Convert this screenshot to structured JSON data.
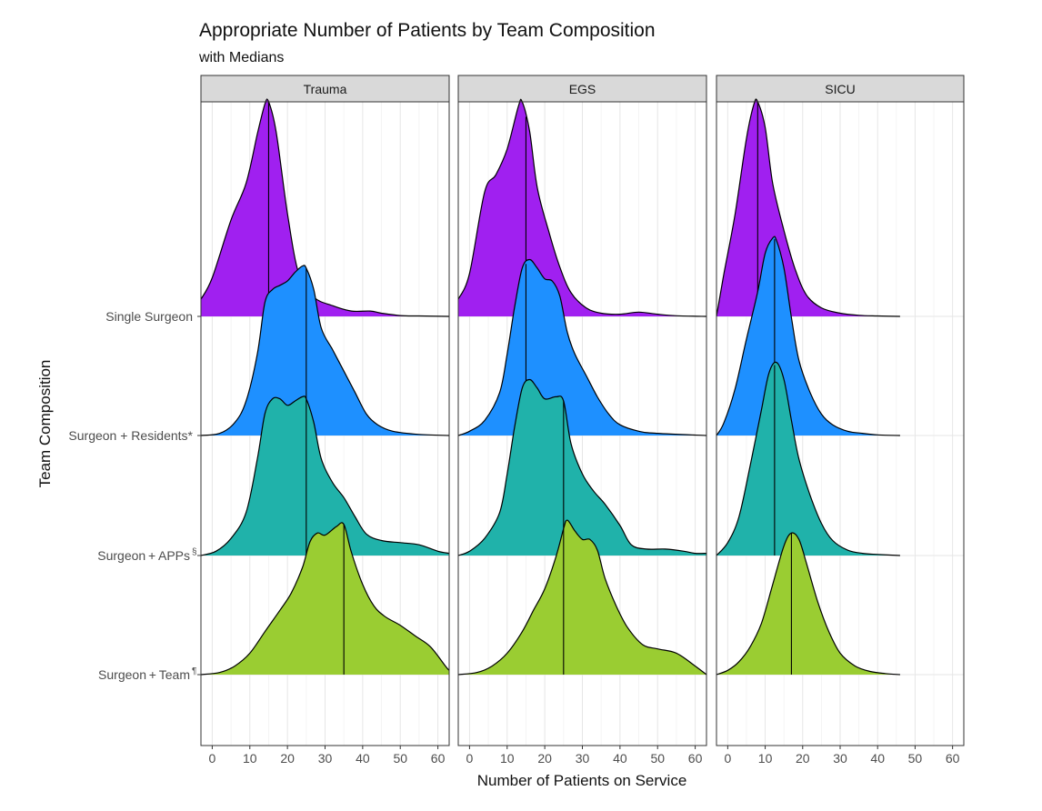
{
  "chart_data": {
    "type": "ridgeline",
    "title": "Appropriate Number of Patients by Team Composition",
    "subtitle": "with Medians",
    "xlabel": "Number of Patients on Service",
    "ylabel": "Team Composition",
    "xlim": [
      -3,
      63
    ],
    "x_ticks": [
      0,
      10,
      20,
      30,
      40,
      50,
      60
    ],
    "grid": true,
    "facets": [
      "Trauma",
      "EGS",
      "SICU"
    ],
    "groups": [
      {
        "name": "Single Surgeon",
        "label": "Single Surgeon",
        "sup": "",
        "color": "#a020f0"
      },
      {
        "name": "Surgeon + Residents*",
        "label": "Surgeon + Residents*",
        "sup": "",
        "color": "#1e90ff"
      },
      {
        "name": "Surgeon + APPs§",
        "label": "Surgeon + APPs",
        "sup": "§",
        "color": "#20b2aa"
      },
      {
        "name": "Surgeon + Team¶",
        "label": "Surgeon + Team",
        "sup": "¶",
        "color": "#9acd32"
      }
    ],
    "densities": {
      "Trauma": [
        {
          "group": "Single Surgeon",
          "median": 15,
          "xrange": [
            -3,
            63
          ],
          "points": [
            [
              -3,
              0.08
            ],
            [
              0,
              0.18
            ],
            [
              5,
              0.45
            ],
            [
              9,
              0.62
            ],
            [
              12,
              0.85
            ],
            [
              14,
              0.99
            ],
            [
              15,
              1.0
            ],
            [
              17,
              0.86
            ],
            [
              20,
              0.48
            ],
            [
              23,
              0.2
            ],
            [
              27,
              0.09
            ],
            [
              32,
              0.05
            ],
            [
              37,
              0.025
            ],
            [
              42,
              0.025
            ],
            [
              45,
              0.015
            ],
            [
              50,
              0.004
            ],
            [
              55,
              0.002
            ],
            [
              63,
              0.0
            ]
          ]
        },
        {
          "group": "Surgeon + Residents*",
          "median": 25,
          "xrange": [
            -3,
            63
          ],
          "points": [
            [
              -3,
              0.0
            ],
            [
              2,
              0.01
            ],
            [
              6,
              0.06
            ],
            [
              9,
              0.16
            ],
            [
              12,
              0.38
            ],
            [
              14,
              0.62
            ],
            [
              16,
              0.68
            ],
            [
              18,
              0.7
            ],
            [
              20,
              0.72
            ],
            [
              22,
              0.76
            ],
            [
              24,
              0.79
            ],
            [
              25,
              0.78
            ],
            [
              27,
              0.68
            ],
            [
              29,
              0.5
            ],
            [
              32,
              0.4
            ],
            [
              35,
              0.3
            ],
            [
              38,
              0.2
            ],
            [
              41,
              0.1
            ],
            [
              44,
              0.05
            ],
            [
              48,
              0.02
            ],
            [
              55,
              0.005
            ],
            [
              63,
              0.0
            ]
          ]
        },
        {
          "group": "Surgeon + APPs§",
          "median": 25,
          "xrange": [
            -3,
            63
          ],
          "points": [
            [
              -3,
              0.0
            ],
            [
              1,
              0.02
            ],
            [
              5,
              0.08
            ],
            [
              9,
              0.2
            ],
            [
              12,
              0.45
            ],
            [
              14,
              0.66
            ],
            [
              16,
              0.73
            ],
            [
              18,
              0.73
            ],
            [
              20,
              0.7
            ],
            [
              22,
              0.72
            ],
            [
              24,
              0.74
            ],
            [
              25,
              0.73
            ],
            [
              27,
              0.62
            ],
            [
              29,
              0.45
            ],
            [
              32,
              0.34
            ],
            [
              35,
              0.27
            ],
            [
              38,
              0.18
            ],
            [
              41,
              0.1
            ],
            [
              45,
              0.07
            ],
            [
              50,
              0.06
            ],
            [
              55,
              0.05
            ],
            [
              60,
              0.02
            ],
            [
              63,
              0.01
            ]
          ]
        },
        {
          "group": "Surgeon + Team¶",
          "median": 35,
          "xrange": [
            -3,
            63
          ],
          "points": [
            [
              -3,
              0.0
            ],
            [
              2,
              0.01
            ],
            [
              6,
              0.04
            ],
            [
              10,
              0.1
            ],
            [
              14,
              0.2
            ],
            [
              18,
              0.3
            ],
            [
              21,
              0.38
            ],
            [
              24,
              0.5
            ],
            [
              26,
              0.62
            ],
            [
              28,
              0.66
            ],
            [
              30,
              0.65
            ],
            [
              33,
              0.69
            ],
            [
              35,
              0.7
            ],
            [
              37,
              0.57
            ],
            [
              40,
              0.42
            ],
            [
              43,
              0.32
            ],
            [
              46,
              0.27
            ],
            [
              50,
              0.23
            ],
            [
              54,
              0.18
            ],
            [
              58,
              0.13
            ],
            [
              62,
              0.04
            ],
            [
              63,
              0.02
            ]
          ]
        }
      ],
      "EGS": [
        {
          "group": "Single Surgeon",
          "median": 15,
          "xrange": [
            -3,
            63
          ],
          "points": [
            [
              -3,
              0.08
            ],
            [
              0,
              0.2
            ],
            [
              4,
              0.58
            ],
            [
              7,
              0.66
            ],
            [
              10,
              0.78
            ],
            [
              13,
              0.98
            ],
            [
              14,
              1.0
            ],
            [
              16,
              0.86
            ],
            [
              18,
              0.6
            ],
            [
              21,
              0.4
            ],
            [
              24,
              0.23
            ],
            [
              27,
              0.11
            ],
            [
              31,
              0.04
            ],
            [
              35,
              0.015
            ],
            [
              40,
              0.01
            ],
            [
              45,
              0.02
            ],
            [
              50,
              0.01
            ],
            [
              55,
              0.003
            ],
            [
              63,
              0.0
            ]
          ]
        },
        {
          "group": "Surgeon + Residents*",
          "median": 15,
          "xrange": [
            -3,
            63
          ],
          "points": [
            [
              -3,
              0.0
            ],
            [
              0,
              0.02
            ],
            [
              4,
              0.07
            ],
            [
              8,
              0.2
            ],
            [
              10,
              0.38
            ],
            [
              12,
              0.6
            ],
            [
              14,
              0.78
            ],
            [
              16,
              0.82
            ],
            [
              18,
              0.78
            ],
            [
              20,
              0.73
            ],
            [
              22,
              0.72
            ],
            [
              24,
              0.65
            ],
            [
              26,
              0.48
            ],
            [
              28,
              0.38
            ],
            [
              31,
              0.28
            ],
            [
              34,
              0.18
            ],
            [
              37,
              0.1
            ],
            [
              40,
              0.05
            ],
            [
              45,
              0.02
            ],
            [
              50,
              0.01
            ],
            [
              63,
              0.0
            ]
          ]
        },
        {
          "group": "Surgeon + APPs§",
          "median": 25,
          "xrange": [
            -3,
            63
          ],
          "points": [
            [
              -3,
              0.0
            ],
            [
              0,
              0.02
            ],
            [
              4,
              0.08
            ],
            [
              8,
              0.2
            ],
            [
              10,
              0.38
            ],
            [
              12,
              0.6
            ],
            [
              14,
              0.78
            ],
            [
              16,
              0.82
            ],
            [
              18,
              0.78
            ],
            [
              20,
              0.73
            ],
            [
              23,
              0.74
            ],
            [
              25,
              0.72
            ],
            [
              27,
              0.52
            ],
            [
              30,
              0.38
            ],
            [
              33,
              0.3
            ],
            [
              36,
              0.24
            ],
            [
              40,
              0.14
            ],
            [
              43,
              0.05
            ],
            [
              47,
              0.03
            ],
            [
              52,
              0.03
            ],
            [
              57,
              0.02
            ],
            [
              60,
              0.01
            ],
            [
              63,
              0.01
            ]
          ]
        },
        {
          "group": "Surgeon + Team¶",
          "median": 25,
          "xrange": [
            -3,
            63
          ],
          "points": [
            [
              -3,
              0.0
            ],
            [
              2,
              0.01
            ],
            [
              6,
              0.04
            ],
            [
              10,
              0.1
            ],
            [
              14,
              0.2
            ],
            [
              17,
              0.3
            ],
            [
              20,
              0.4
            ],
            [
              23,
              0.55
            ],
            [
              25,
              0.68
            ],
            [
              26,
              0.72
            ],
            [
              28,
              0.67
            ],
            [
              30,
              0.63
            ],
            [
              32,
              0.63
            ],
            [
              34,
              0.58
            ],
            [
              36,
              0.45
            ],
            [
              39,
              0.32
            ],
            [
              42,
              0.22
            ],
            [
              46,
              0.14
            ],
            [
              50,
              0.12
            ],
            [
              55,
              0.1
            ],
            [
              60,
              0.04
            ],
            [
              63,
              0.0
            ]
          ]
        }
      ],
      "SICU": [
        {
          "group": "Single Surgeon",
          "median": 8,
          "xrange": [
            -3,
            46
          ],
          "points": [
            [
              -3,
              0.0
            ],
            [
              -1,
              0.2
            ],
            [
              2,
              0.48
            ],
            [
              5,
              0.83
            ],
            [
              7,
              0.99
            ],
            [
              8,
              1.0
            ],
            [
              10,
              0.88
            ],
            [
              12,
              0.62
            ],
            [
              15,
              0.4
            ],
            [
              18,
              0.22
            ],
            [
              21,
              0.1
            ],
            [
              25,
              0.04
            ],
            [
              30,
              0.015
            ],
            [
              35,
              0.005
            ],
            [
              40,
              0.002
            ],
            [
              46,
              0.0
            ]
          ]
        },
        {
          "group": "Surgeon + Residents*",
          "median": 12.5,
          "xrange": [
            -3,
            46
          ],
          "points": [
            [
              -3,
              0.0
            ],
            [
              -1,
              0.06
            ],
            [
              2,
              0.22
            ],
            [
              5,
              0.45
            ],
            [
              8,
              0.67
            ],
            [
              10,
              0.85
            ],
            [
              12,
              0.92
            ],
            [
              13,
              0.91
            ],
            [
              15,
              0.78
            ],
            [
              17,
              0.55
            ],
            [
              19,
              0.35
            ],
            [
              22,
              0.2
            ],
            [
              25,
              0.1
            ],
            [
              28,
              0.05
            ],
            [
              32,
              0.02
            ],
            [
              36,
              0.01
            ],
            [
              40,
              0.003
            ],
            [
              46,
              0.0
            ]
          ]
        },
        {
          "group": "Surgeon + APPs§",
          "median": 12.5,
          "xrange": [
            -3,
            46
          ],
          "points": [
            [
              -3,
              0.0
            ],
            [
              0,
              0.06
            ],
            [
              3,
              0.18
            ],
            [
              6,
              0.42
            ],
            [
              9,
              0.68
            ],
            [
              11,
              0.85
            ],
            [
              13,
              0.9
            ],
            [
              15,
              0.82
            ],
            [
              17,
              0.63
            ],
            [
              19,
              0.45
            ],
            [
              22,
              0.28
            ],
            [
              25,
              0.15
            ],
            [
              28,
              0.07
            ],
            [
              32,
              0.025
            ],
            [
              36,
              0.01
            ],
            [
              40,
              0.005
            ],
            [
              46,
              0.0
            ]
          ]
        },
        {
          "group": "Surgeon + Team¶",
          "median": 17,
          "xrange": [
            -3,
            46
          ],
          "points": [
            [
              -3,
              0.0
            ],
            [
              0,
              0.02
            ],
            [
              3,
              0.06
            ],
            [
              6,
              0.13
            ],
            [
              9,
              0.24
            ],
            [
              12,
              0.42
            ],
            [
              15,
              0.6
            ],
            [
              17,
              0.66
            ],
            [
              19,
              0.63
            ],
            [
              21,
              0.52
            ],
            [
              24,
              0.34
            ],
            [
              27,
              0.2
            ],
            [
              30,
              0.1
            ],
            [
              34,
              0.04
            ],
            [
              38,
              0.015
            ],
            [
              42,
              0.005
            ],
            [
              46,
              0.0
            ]
          ]
        }
      ]
    }
  }
}
